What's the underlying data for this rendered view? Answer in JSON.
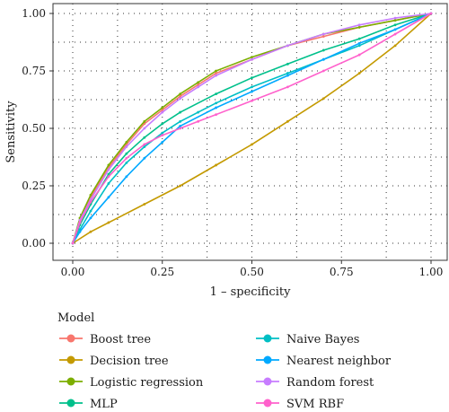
{
  "chart_data": {
    "type": "line",
    "xlabel": "1 – specificity",
    "ylabel": "Sensitivity",
    "xlim": [
      0,
      1
    ],
    "ylim": [
      0,
      1
    ],
    "x_ticks": [
      "0.00",
      "0.25",
      "0.50",
      "0.75",
      "1.00"
    ],
    "y_ticks": [
      "0.00",
      "0.25",
      "0.50",
      "0.75",
      "1.00"
    ],
    "grid": "dotted",
    "legend_title": "Model",
    "legend_position": "bottom",
    "series": [
      {
        "name": "Boost tree",
        "color": "#F8766D",
        "points": [
          [
            0,
            0
          ],
          [
            0.02,
            0.1
          ],
          [
            0.05,
            0.2
          ],
          [
            0.1,
            0.33
          ],
          [
            0.15,
            0.43
          ],
          [
            0.2,
            0.52
          ],
          [
            0.25,
            0.58
          ],
          [
            0.3,
            0.64
          ],
          [
            0.35,
            0.69
          ],
          [
            0.4,
            0.74
          ],
          [
            0.5,
            0.8
          ],
          [
            0.6,
            0.86
          ],
          [
            0.7,
            0.9
          ],
          [
            0.8,
            0.94
          ],
          [
            0.9,
            0.97
          ],
          [
            1,
            1
          ]
        ]
      },
      {
        "name": "Decision tree",
        "color": "#C49A00",
        "points": [
          [
            0,
            0
          ],
          [
            0.05,
            0.05
          ],
          [
            0.1,
            0.09
          ],
          [
            0.2,
            0.17
          ],
          [
            0.3,
            0.25
          ],
          [
            0.4,
            0.34
          ],
          [
            0.5,
            0.43
          ],
          [
            0.6,
            0.53
          ],
          [
            0.7,
            0.63
          ],
          [
            0.8,
            0.74
          ],
          [
            0.9,
            0.86
          ],
          [
            1,
            1
          ]
        ]
      },
      {
        "name": "Logistic regression",
        "color": "#7CAE00",
        "points": [
          [
            0,
            0
          ],
          [
            0.02,
            0.11
          ],
          [
            0.05,
            0.21
          ],
          [
            0.1,
            0.34
          ],
          [
            0.15,
            0.44
          ],
          [
            0.2,
            0.53
          ],
          [
            0.25,
            0.59
          ],
          [
            0.3,
            0.65
          ],
          [
            0.35,
            0.7
          ],
          [
            0.4,
            0.75
          ],
          [
            0.5,
            0.81
          ],
          [
            0.6,
            0.86
          ],
          [
            0.7,
            0.91
          ],
          [
            0.8,
            0.94
          ],
          [
            0.9,
            0.97
          ],
          [
            1,
            1
          ]
        ]
      },
      {
        "name": "MLP",
        "color": "#00C08B",
        "points": [
          [
            0,
            0
          ],
          [
            0.02,
            0.08
          ],
          [
            0.05,
            0.17
          ],
          [
            0.1,
            0.3
          ],
          [
            0.15,
            0.39
          ],
          [
            0.2,
            0.46
          ],
          [
            0.25,
            0.52
          ],
          [
            0.3,
            0.57
          ],
          [
            0.4,
            0.65
          ],
          [
            0.5,
            0.72
          ],
          [
            0.6,
            0.78
          ],
          [
            0.7,
            0.84
          ],
          [
            0.8,
            0.89
          ],
          [
            0.9,
            0.95
          ],
          [
            1,
            1
          ]
        ]
      },
      {
        "name": "Naive Bayes",
        "color": "#00BFC4",
        "points": [
          [
            0,
            0
          ],
          [
            0.02,
            0.06
          ],
          [
            0.05,
            0.14
          ],
          [
            0.1,
            0.26
          ],
          [
            0.15,
            0.35
          ],
          [
            0.2,
            0.42
          ],
          [
            0.25,
            0.48
          ],
          [
            0.3,
            0.53
          ],
          [
            0.35,
            0.57
          ],
          [
            0.4,
            0.61
          ],
          [
            0.5,
            0.68
          ],
          [
            0.6,
            0.74
          ],
          [
            0.7,
            0.8
          ],
          [
            0.8,
            0.86
          ],
          [
            0.9,
            0.93
          ],
          [
            1,
            1
          ]
        ]
      },
      {
        "name": "Nearest neighbor",
        "color": "#00A9FF",
        "points": [
          [
            0,
            0
          ],
          [
            0.02,
            0.05
          ],
          [
            0.05,
            0.11
          ],
          [
            0.1,
            0.2
          ],
          [
            0.15,
            0.29
          ],
          [
            0.2,
            0.37
          ],
          [
            0.25,
            0.44
          ],
          [
            0.3,
            0.51
          ],
          [
            0.4,
            0.59
          ],
          [
            0.5,
            0.66
          ],
          [
            0.6,
            0.73
          ],
          [
            0.7,
            0.8
          ],
          [
            0.8,
            0.87
          ],
          [
            0.9,
            0.93
          ],
          [
            1,
            1
          ]
        ]
      },
      {
        "name": "Random forest",
        "color": "#C77CFF",
        "points": [
          [
            0,
            0
          ],
          [
            0.02,
            0.1
          ],
          [
            0.05,
            0.19
          ],
          [
            0.1,
            0.32
          ],
          [
            0.15,
            0.42
          ],
          [
            0.2,
            0.5
          ],
          [
            0.25,
            0.57
          ],
          [
            0.3,
            0.63
          ],
          [
            0.35,
            0.68
          ],
          [
            0.4,
            0.73
          ],
          [
            0.5,
            0.8
          ],
          [
            0.6,
            0.86
          ],
          [
            0.7,
            0.91
          ],
          [
            0.8,
            0.95
          ],
          [
            0.9,
            0.98
          ],
          [
            1,
            1
          ]
        ]
      },
      {
        "name": "SVM RBF",
        "color": "#FF61CC",
        "points": [
          [
            0,
            0
          ],
          [
            0.02,
            0.09
          ],
          [
            0.05,
            0.18
          ],
          [
            0.1,
            0.29
          ],
          [
            0.15,
            0.37
          ],
          [
            0.2,
            0.43
          ],
          [
            0.25,
            0.47
          ],
          [
            0.3,
            0.5
          ],
          [
            0.35,
            0.53
          ],
          [
            0.4,
            0.56
          ],
          [
            0.5,
            0.62
          ],
          [
            0.6,
            0.68
          ],
          [
            0.7,
            0.75
          ],
          [
            0.8,
            0.82
          ],
          [
            0.9,
            0.91
          ],
          [
            1,
            1
          ]
        ]
      }
    ]
  }
}
